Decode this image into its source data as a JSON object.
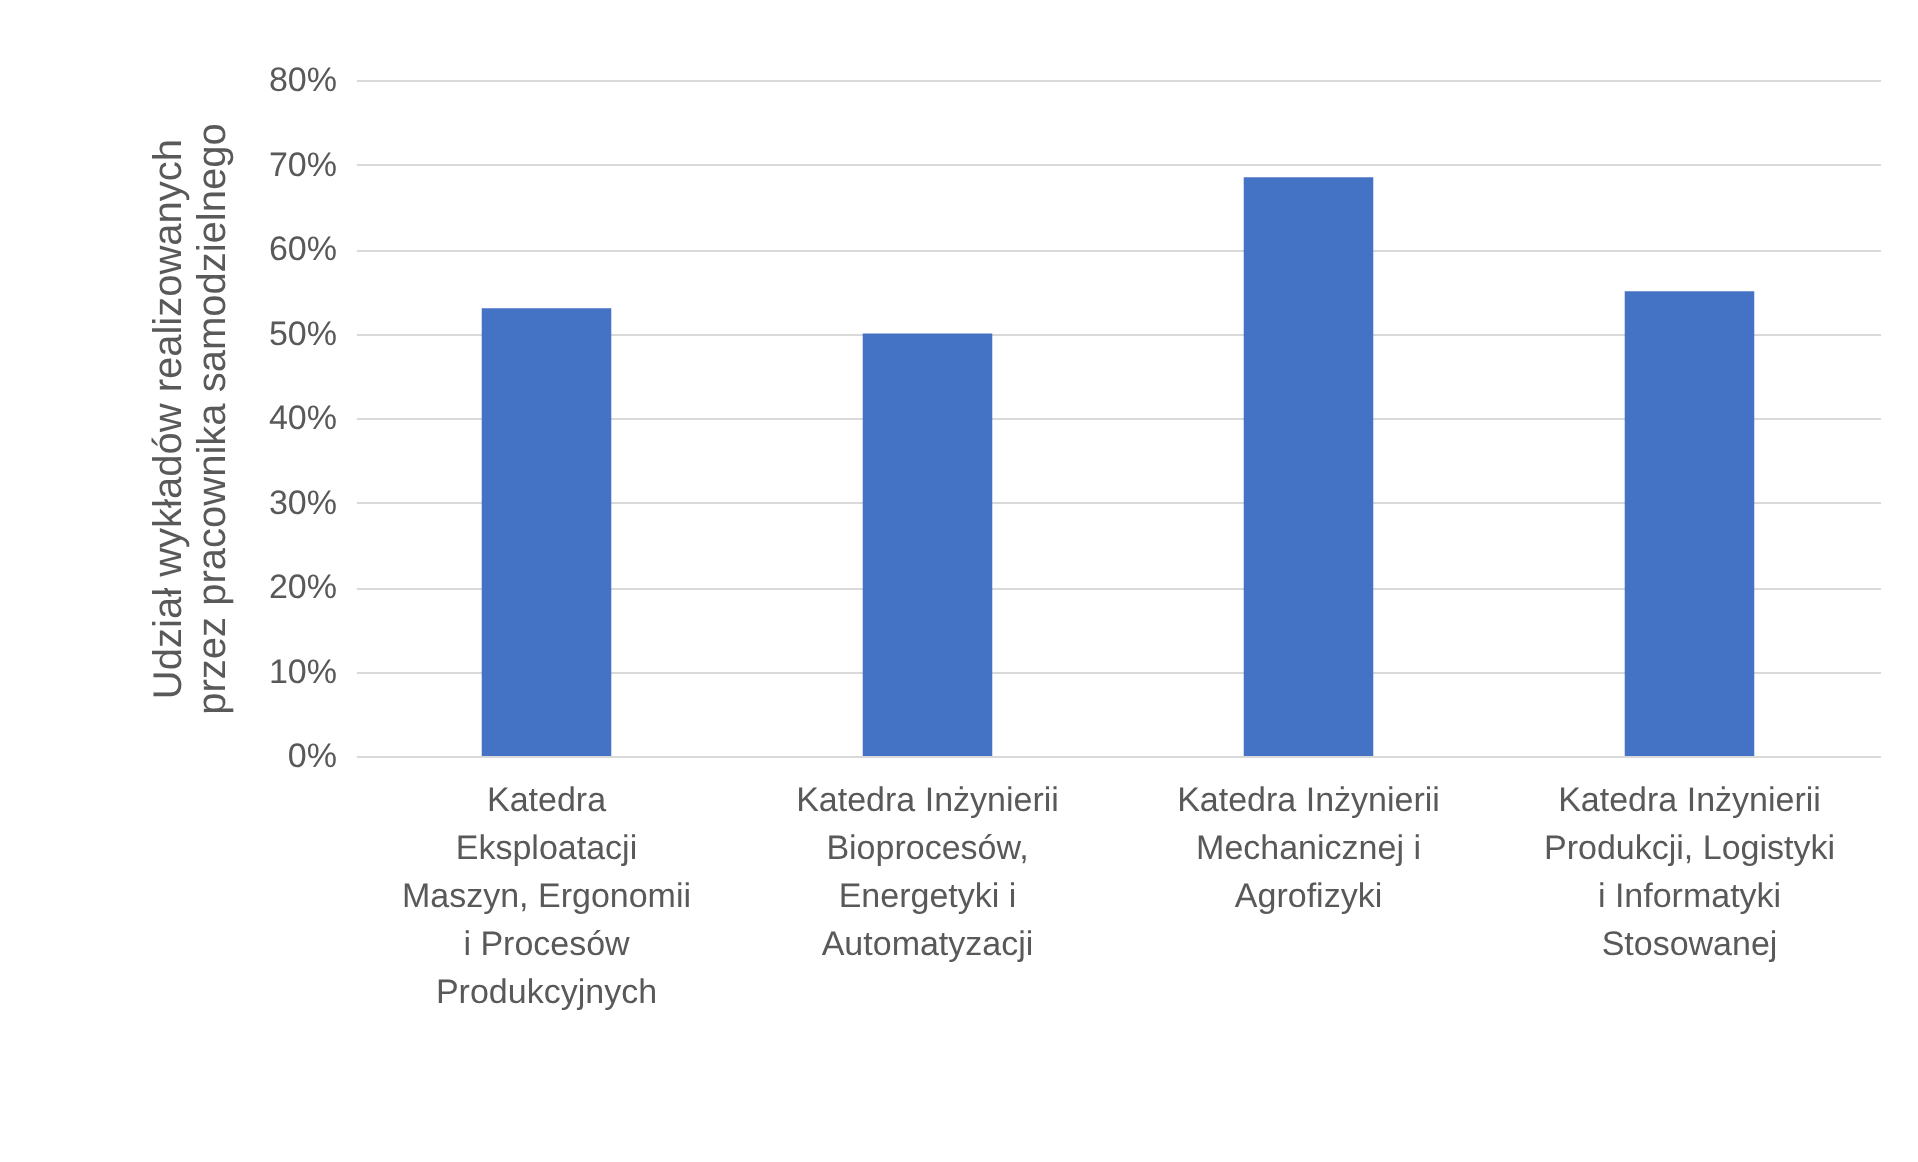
{
  "chart_data": {
    "type": "bar",
    "ylabel": "Udział wykładów realizowanych przez pracownika samodzielnego",
    "categories": [
      "Katedra Eksploatacji Maszyn, Ergonomii i Procesów Produkcyjnych",
      "Katedra Inżynierii Bioprocesów, Energetyki i Automatyzacji",
      "Katedra Inżynierii Mechanicznej i Agrofizyki",
      "Katedra Inżynierii Produkcji, Logistyki i Informatyki Stosowanej"
    ],
    "values": [
      53,
      50,
      68.5,
      55
    ],
    "color": "#4472c4",
    "ylim": [
      0,
      80
    ],
    "yticks": [
      {
        "value": 0,
        "label": "0%"
      },
      {
        "value": 10,
        "label": "10%"
      },
      {
        "value": 20,
        "label": "20%"
      },
      {
        "value": 30,
        "label": "30%"
      },
      {
        "value": 40,
        "label": "40%"
      },
      {
        "value": 50,
        "label": "50%"
      },
      {
        "value": 60,
        "label": "60%"
      },
      {
        "value": 70,
        "label": "70%"
      },
      {
        "value": 80,
        "label": "80%"
      }
    ],
    "grid": "y"
  }
}
